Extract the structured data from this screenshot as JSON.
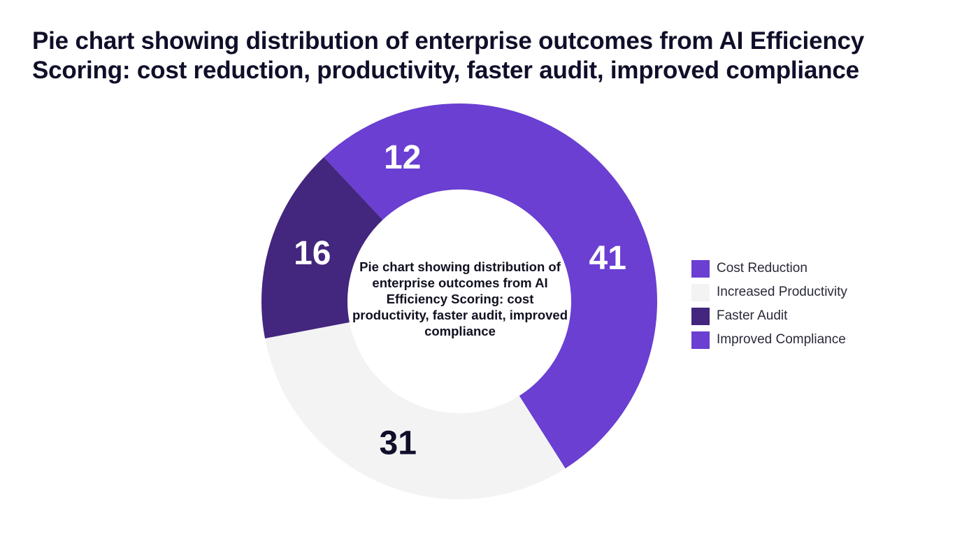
{
  "chart_data": {
    "type": "pie",
    "title": "Pie chart showing distribution of enterprise outcomes from AI Efficiency Scoring: cost reduction, productivity, faster audit, improved compliance",
    "center_label": "Pie chart showing distribution of enterprise outcomes from AI Efficiency Scoring: cost productivity, faster audit, improved compliance",
    "categories": [
      "Cost Reduction",
      "Increased Productivity",
      "Faster Audit",
      "Improved Compliance"
    ],
    "values": [
      41,
      31,
      16,
      12
    ],
    "colors": [
      "#6a3fd1",
      "#f3f3f4",
      "#43267e",
      "#6a3fd1"
    ],
    "label_colors": [
      "#ffffff",
      "#0f0f2a",
      "#ffffff",
      "#ffffff"
    ],
    "legend_position": "right"
  }
}
